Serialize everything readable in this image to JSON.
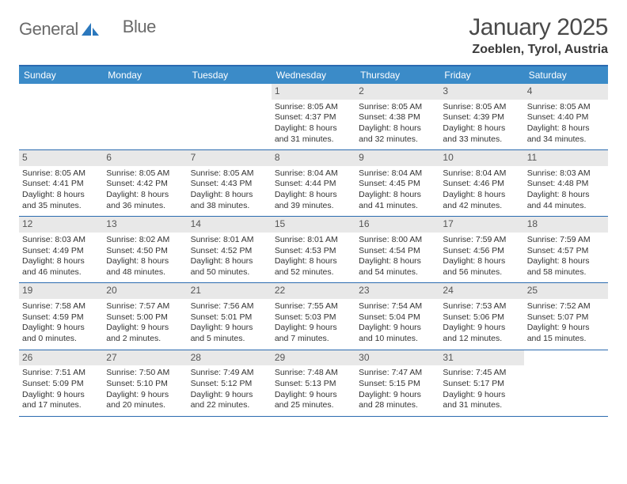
{
  "logo": {
    "general": "General",
    "blue": "Blue"
  },
  "title": "January 2025",
  "location": "Zoeblen, Tyrol, Austria",
  "colors": {
    "header_bar": "#3b8bc8",
    "header_border": "#2b6bb0",
    "daynum_bg": "#e8e8e8",
    "text": "#333333"
  },
  "day_headers": [
    "Sunday",
    "Monday",
    "Tuesday",
    "Wednesday",
    "Thursday",
    "Friday",
    "Saturday"
  ],
  "weeks": [
    [
      {
        "empty": true
      },
      {
        "empty": true
      },
      {
        "empty": true
      },
      {
        "day": "1",
        "sunrise": "Sunrise: 8:05 AM",
        "sunset": "Sunset: 4:37 PM",
        "dl1": "Daylight: 8 hours",
        "dl2": "and 31 minutes."
      },
      {
        "day": "2",
        "sunrise": "Sunrise: 8:05 AM",
        "sunset": "Sunset: 4:38 PM",
        "dl1": "Daylight: 8 hours",
        "dl2": "and 32 minutes."
      },
      {
        "day": "3",
        "sunrise": "Sunrise: 8:05 AM",
        "sunset": "Sunset: 4:39 PM",
        "dl1": "Daylight: 8 hours",
        "dl2": "and 33 minutes."
      },
      {
        "day": "4",
        "sunrise": "Sunrise: 8:05 AM",
        "sunset": "Sunset: 4:40 PM",
        "dl1": "Daylight: 8 hours",
        "dl2": "and 34 minutes."
      }
    ],
    [
      {
        "day": "5",
        "sunrise": "Sunrise: 8:05 AM",
        "sunset": "Sunset: 4:41 PM",
        "dl1": "Daylight: 8 hours",
        "dl2": "and 35 minutes."
      },
      {
        "day": "6",
        "sunrise": "Sunrise: 8:05 AM",
        "sunset": "Sunset: 4:42 PM",
        "dl1": "Daylight: 8 hours",
        "dl2": "and 36 minutes."
      },
      {
        "day": "7",
        "sunrise": "Sunrise: 8:05 AM",
        "sunset": "Sunset: 4:43 PM",
        "dl1": "Daylight: 8 hours",
        "dl2": "and 38 minutes."
      },
      {
        "day": "8",
        "sunrise": "Sunrise: 8:04 AM",
        "sunset": "Sunset: 4:44 PM",
        "dl1": "Daylight: 8 hours",
        "dl2": "and 39 minutes."
      },
      {
        "day": "9",
        "sunrise": "Sunrise: 8:04 AM",
        "sunset": "Sunset: 4:45 PM",
        "dl1": "Daylight: 8 hours",
        "dl2": "and 41 minutes."
      },
      {
        "day": "10",
        "sunrise": "Sunrise: 8:04 AM",
        "sunset": "Sunset: 4:46 PM",
        "dl1": "Daylight: 8 hours",
        "dl2": "and 42 minutes."
      },
      {
        "day": "11",
        "sunrise": "Sunrise: 8:03 AM",
        "sunset": "Sunset: 4:48 PM",
        "dl1": "Daylight: 8 hours",
        "dl2": "and 44 minutes."
      }
    ],
    [
      {
        "day": "12",
        "sunrise": "Sunrise: 8:03 AM",
        "sunset": "Sunset: 4:49 PM",
        "dl1": "Daylight: 8 hours",
        "dl2": "and 46 minutes."
      },
      {
        "day": "13",
        "sunrise": "Sunrise: 8:02 AM",
        "sunset": "Sunset: 4:50 PM",
        "dl1": "Daylight: 8 hours",
        "dl2": "and 48 minutes."
      },
      {
        "day": "14",
        "sunrise": "Sunrise: 8:01 AM",
        "sunset": "Sunset: 4:52 PM",
        "dl1": "Daylight: 8 hours",
        "dl2": "and 50 minutes."
      },
      {
        "day": "15",
        "sunrise": "Sunrise: 8:01 AM",
        "sunset": "Sunset: 4:53 PM",
        "dl1": "Daylight: 8 hours",
        "dl2": "and 52 minutes."
      },
      {
        "day": "16",
        "sunrise": "Sunrise: 8:00 AM",
        "sunset": "Sunset: 4:54 PM",
        "dl1": "Daylight: 8 hours",
        "dl2": "and 54 minutes."
      },
      {
        "day": "17",
        "sunrise": "Sunrise: 7:59 AM",
        "sunset": "Sunset: 4:56 PM",
        "dl1": "Daylight: 8 hours",
        "dl2": "and 56 minutes."
      },
      {
        "day": "18",
        "sunrise": "Sunrise: 7:59 AM",
        "sunset": "Sunset: 4:57 PM",
        "dl1": "Daylight: 8 hours",
        "dl2": "and 58 minutes."
      }
    ],
    [
      {
        "day": "19",
        "sunrise": "Sunrise: 7:58 AM",
        "sunset": "Sunset: 4:59 PM",
        "dl1": "Daylight: 9 hours",
        "dl2": "and 0 minutes."
      },
      {
        "day": "20",
        "sunrise": "Sunrise: 7:57 AM",
        "sunset": "Sunset: 5:00 PM",
        "dl1": "Daylight: 9 hours",
        "dl2": "and 2 minutes."
      },
      {
        "day": "21",
        "sunrise": "Sunrise: 7:56 AM",
        "sunset": "Sunset: 5:01 PM",
        "dl1": "Daylight: 9 hours",
        "dl2": "and 5 minutes."
      },
      {
        "day": "22",
        "sunrise": "Sunrise: 7:55 AM",
        "sunset": "Sunset: 5:03 PM",
        "dl1": "Daylight: 9 hours",
        "dl2": "and 7 minutes."
      },
      {
        "day": "23",
        "sunrise": "Sunrise: 7:54 AM",
        "sunset": "Sunset: 5:04 PM",
        "dl1": "Daylight: 9 hours",
        "dl2": "and 10 minutes."
      },
      {
        "day": "24",
        "sunrise": "Sunrise: 7:53 AM",
        "sunset": "Sunset: 5:06 PM",
        "dl1": "Daylight: 9 hours",
        "dl2": "and 12 minutes."
      },
      {
        "day": "25",
        "sunrise": "Sunrise: 7:52 AM",
        "sunset": "Sunset: 5:07 PM",
        "dl1": "Daylight: 9 hours",
        "dl2": "and 15 minutes."
      }
    ],
    [
      {
        "day": "26",
        "sunrise": "Sunrise: 7:51 AM",
        "sunset": "Sunset: 5:09 PM",
        "dl1": "Daylight: 9 hours",
        "dl2": "and 17 minutes."
      },
      {
        "day": "27",
        "sunrise": "Sunrise: 7:50 AM",
        "sunset": "Sunset: 5:10 PM",
        "dl1": "Daylight: 9 hours",
        "dl2": "and 20 minutes."
      },
      {
        "day": "28",
        "sunrise": "Sunrise: 7:49 AM",
        "sunset": "Sunset: 5:12 PM",
        "dl1": "Daylight: 9 hours",
        "dl2": "and 22 minutes."
      },
      {
        "day": "29",
        "sunrise": "Sunrise: 7:48 AM",
        "sunset": "Sunset: 5:13 PM",
        "dl1": "Daylight: 9 hours",
        "dl2": "and 25 minutes."
      },
      {
        "day": "30",
        "sunrise": "Sunrise: 7:47 AM",
        "sunset": "Sunset: 5:15 PM",
        "dl1": "Daylight: 9 hours",
        "dl2": "and 28 minutes."
      },
      {
        "day": "31",
        "sunrise": "Sunrise: 7:45 AM",
        "sunset": "Sunset: 5:17 PM",
        "dl1": "Daylight: 9 hours",
        "dl2": "and 31 minutes."
      },
      {
        "empty": true
      }
    ]
  ]
}
